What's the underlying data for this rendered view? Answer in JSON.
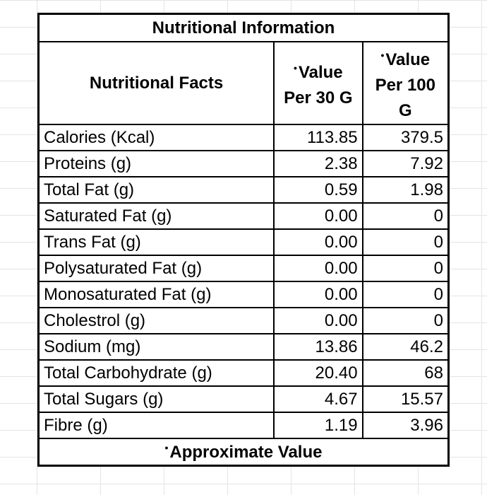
{
  "title": "Nutritional Information",
  "headers": {
    "facts": "Nutritional Facts",
    "marker": "•",
    "per30_line1": "Value",
    "per30_line2": "Per 30 G",
    "per100_line1": "Value",
    "per100_line2": "Per 100",
    "per100_line3": "G"
  },
  "rows": [
    {
      "name": "Calories (Kcal)",
      "per30": "113.85",
      "per100": "379.5"
    },
    {
      "name": "Proteins (g)",
      "per30": "2.38",
      "per100": "7.92"
    },
    {
      "name": "Total Fat (g)",
      "per30": "0.59",
      "per100": "1.98"
    },
    {
      "name": "Saturated Fat (g)",
      "per30": "0.00",
      "per100": "0"
    },
    {
      "name": "Trans Fat (g)",
      "per30": "0.00",
      "per100": "0"
    },
    {
      "name": "Polysaturated Fat (g)",
      "per30": "0.00",
      "per100": "0"
    },
    {
      "name": "Monosaturated Fat (g)",
      "per30": "0.00",
      "per100": "0"
    },
    {
      "name": "Cholestrol (g)",
      "per30": "0.00",
      "per100": "0"
    },
    {
      "name": "Sodium  (mg)",
      "per30": "13.86",
      "per100": "46.2"
    },
    {
      "name": "Total Carbohydrate (g)",
      "per30": "20.40",
      "per100": "68"
    },
    {
      "name": "Total Sugars (g)",
      "per30": "4.67",
      "per100": "15.57"
    },
    {
      "name": "Fibre (g)",
      "per30": "1.19",
      "per100": "3.96"
    }
  ],
  "footnote": "Approximate Value"
}
